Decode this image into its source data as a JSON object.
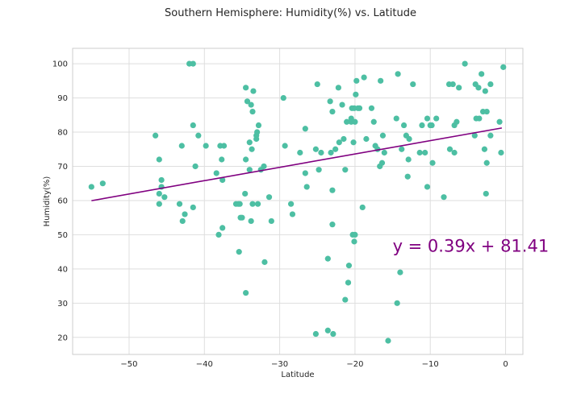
{
  "chart_data": {
    "type": "scatter",
    "title": "Southern Hemisphere: Humidity(%) vs. Latitude",
    "xlabel": "Latitude",
    "ylabel": "Humidity(%)",
    "xlim": [
      -57.5,
      2.3
    ],
    "ylim": [
      15,
      104.5
    ],
    "xticks": [
      -50,
      -40,
      -30,
      -20,
      -10,
      0
    ],
    "yticks": [
      20,
      30,
      40,
      50,
      60,
      70,
      80,
      90,
      100
    ],
    "grid": true,
    "colors": {
      "points": "#4dbfa3",
      "line": "#800080",
      "grid": "#dedede",
      "axes": "#cccccc"
    },
    "regression": {
      "slope": 0.39,
      "intercept": 81.41,
      "x_start": -55,
      "x_end": -0.5,
      "label": "y = 0.39x + 81.41",
      "label_x": -15,
      "label_y": 45
    },
    "points": [
      [
        -55,
        64
      ],
      [
        -53.5,
        65
      ],
      [
        -46.5,
        79
      ],
      [
        -46,
        72
      ],
      [
        -46,
        62
      ],
      [
        -46,
        59
      ],
      [
        -45.7,
        64
      ],
      [
        -45.7,
        66
      ],
      [
        -45.3,
        61
      ],
      [
        -43.3,
        59
      ],
      [
        -43,
        76
      ],
      [
        -42.9,
        54
      ],
      [
        -42.6,
        56
      ],
      [
        -42,
        100
      ],
      [
        -41.5,
        100
      ],
      [
        -41.5,
        82
      ],
      [
        -41.5,
        58
      ],
      [
        -41.2,
        70
      ],
      [
        -40.8,
        79
      ],
      [
        -39.8,
        76
      ],
      [
        -38.4,
        68
      ],
      [
        -38.1,
        50
      ],
      [
        -37.9,
        76
      ],
      [
        -37.7,
        72
      ],
      [
        -37.6,
        66
      ],
      [
        -37.6,
        52
      ],
      [
        -37.4,
        76
      ],
      [
        -35.8,
        59
      ],
      [
        -35.5,
        59
      ],
      [
        -35.4,
        45
      ],
      [
        -35.3,
        59
      ],
      [
        -35.2,
        55
      ],
      [
        -35,
        55
      ],
      [
        -34.6,
        62
      ],
      [
        -34.5,
        72
      ],
      [
        -34.5,
        33
      ],
      [
        -34.5,
        93
      ],
      [
        -34.3,
        89
      ],
      [
        -34,
        69
      ],
      [
        -34,
        77
      ],
      [
        -33.8,
        88
      ],
      [
        -33.8,
        54
      ],
      [
        -33.7,
        75
      ],
      [
        -33.6,
        59
      ],
      [
        -33.6,
        86
      ],
      [
        -33.5,
        92
      ],
      [
        -33.1,
        78
      ],
      [
        -33.1,
        79
      ],
      [
        -33,
        80
      ],
      [
        -32.9,
        59
      ],
      [
        -32.8,
        82
      ],
      [
        -32.5,
        69
      ],
      [
        -32.1,
        70
      ],
      [
        -32,
        42
      ],
      [
        -31.4,
        61
      ],
      [
        -31.1,
        54
      ],
      [
        -29.5,
        90
      ],
      [
        -29.3,
        76
      ],
      [
        -28.5,
        59
      ],
      [
        -28.3,
        56
      ],
      [
        -27.3,
        74
      ],
      [
        -26.6,
        81
      ],
      [
        -26.6,
        68
      ],
      [
        -26.4,
        64
      ],
      [
        -25.2,
        75
      ],
      [
        -25.2,
        21
      ],
      [
        -25,
        94
      ],
      [
        -24.8,
        69
      ],
      [
        -24.5,
        74
      ],
      [
        -23.6,
        22
      ],
      [
        -23.6,
        43
      ],
      [
        -23.3,
        89
      ],
      [
        -23.2,
        74
      ],
      [
        -23,
        86
      ],
      [
        -23,
        63
      ],
      [
        -23,
        53
      ],
      [
        -22.9,
        21
      ],
      [
        -22.6,
        75
      ],
      [
        -22.2,
        93
      ],
      [
        -22.1,
        77
      ],
      [
        -21.7,
        88
      ],
      [
        -21.5,
        78
      ],
      [
        -21.3,
        31
      ],
      [
        -21.3,
        69
      ],
      [
        -21.1,
        83
      ],
      [
        -20.9,
        36
      ],
      [
        -20.8,
        41
      ],
      [
        -20.5,
        83
      ],
      [
        -20.5,
        84
      ],
      [
        -20.4,
        87
      ],
      [
        -20.3,
        50
      ],
      [
        -20.2,
        77
      ],
      [
        -20.1,
        87
      ],
      [
        -20.1,
        48
      ],
      [
        -20,
        83
      ],
      [
        -20,
        50
      ],
      [
        -19.9,
        91
      ],
      [
        -19.8,
        95
      ],
      [
        -19.6,
        87
      ],
      [
        -19.4,
        87
      ],
      [
        -19,
        58
      ],
      [
        -18.8,
        96
      ],
      [
        -18.5,
        78
      ],
      [
        -17.8,
        87
      ],
      [
        -17.5,
        83
      ],
      [
        -17.3,
        76
      ],
      [
        -17,
        75
      ],
      [
        -16.7,
        70
      ],
      [
        -16.6,
        95
      ],
      [
        -16.4,
        71
      ],
      [
        -16.3,
        79
      ],
      [
        -16.1,
        74
      ],
      [
        -15.6,
        19
      ],
      [
        -14.5,
        84
      ],
      [
        -14.4,
        30
      ],
      [
        -14.3,
        97
      ],
      [
        -14,
        39
      ],
      [
        -13.8,
        75
      ],
      [
        -13.5,
        82
      ],
      [
        -13.2,
        79
      ],
      [
        -13,
        67
      ],
      [
        -12.9,
        72
      ],
      [
        -12.8,
        78
      ],
      [
        -12.3,
        94
      ],
      [
        -11.4,
        74
      ],
      [
        -11.1,
        82
      ],
      [
        -10.7,
        74
      ],
      [
        -10.4,
        84
      ],
      [
        -10.4,
        64
      ],
      [
        -10,
        82
      ],
      [
        -9.8,
        82
      ],
      [
        -9.7,
        71
      ],
      [
        -9.2,
        84
      ],
      [
        -8.2,
        61
      ],
      [
        -7.5,
        94
      ],
      [
        -7.4,
        75
      ],
      [
        -7,
        94
      ],
      [
        -6.8,
        82
      ],
      [
        -6.8,
        74
      ],
      [
        -6.5,
        83
      ],
      [
        -6.2,
        93
      ],
      [
        -5.4,
        100
      ],
      [
        -4.1,
        79
      ],
      [
        -4,
        94
      ],
      [
        -3.9,
        84
      ],
      [
        -3.6,
        93
      ],
      [
        -3.5,
        84
      ],
      [
        -3.2,
        97
      ],
      [
        -3,
        86
      ],
      [
        -2.8,
        75
      ],
      [
        -2.7,
        92
      ],
      [
        -2.6,
        62
      ],
      [
        -2.5,
        86
      ],
      [
        -2.5,
        71
      ],
      [
        -2,
        79
      ],
      [
        -2,
        94
      ],
      [
        -0.8,
        83
      ],
      [
        -0.6,
        74
      ],
      [
        -0.3,
        99
      ]
    ]
  }
}
